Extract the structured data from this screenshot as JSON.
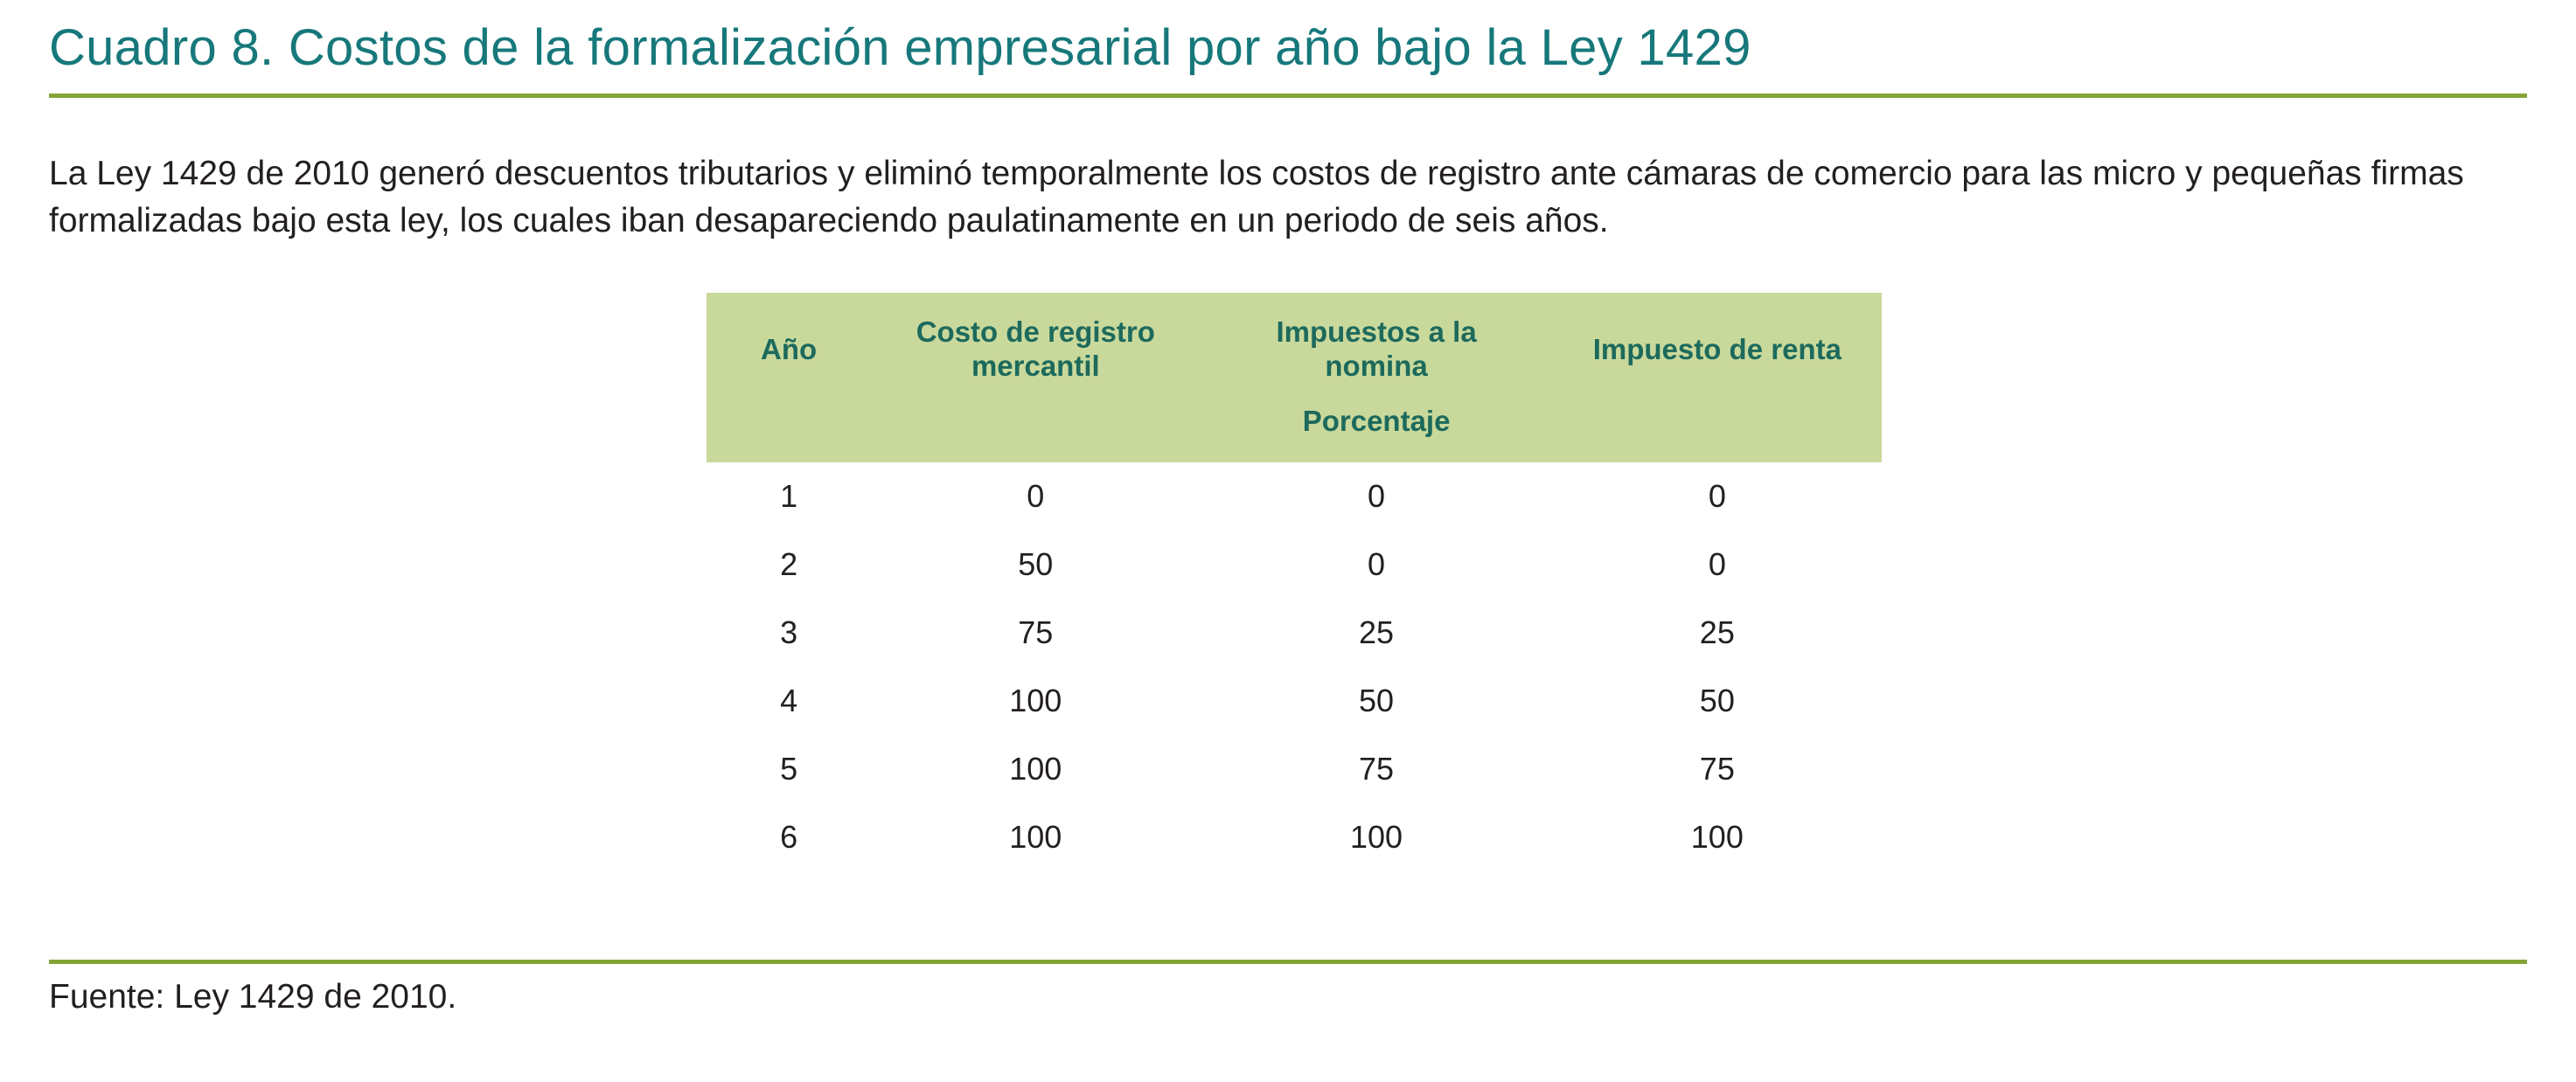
{
  "page": {
    "title": "Cuadro 8. Costos de la formalización empresarial por año bajo la Ley 1429",
    "description": "La Ley 1429 de 2010 generó descuentos tributarios y eliminó temporalmente los costos de registro ante cámaras de comercio para las micro y pequeñas firmas formalizadas bajo esta ley, los cuales iban desapareciendo paulatinamente en un periodo de seis años.",
    "source": "Fuente: Ley 1429 de 2010."
  },
  "colors": {
    "title": "#17787b",
    "rule": "#84a437",
    "header_bg": "#c9d99c",
    "header_text": "#1d6a5c",
    "body_text": "#231f20"
  },
  "chart_data": {
    "type": "table",
    "title": "Cuadro 8. Costos de la formalización empresarial por año bajo la Ley 1429",
    "columns": [
      "Año",
      "Costo de registro mercantil",
      "Impuestos a la nomina",
      "Impuesto de renta"
    ],
    "unit_subheader": "Porcentaje",
    "rows": [
      [
        1,
        0,
        0,
        0
      ],
      [
        2,
        50,
        0,
        0
      ],
      [
        3,
        75,
        25,
        25
      ],
      [
        4,
        100,
        50,
        50
      ],
      [
        5,
        100,
        75,
        75
      ],
      [
        6,
        100,
        100,
        100
      ]
    ]
  },
  "table": {
    "columns": [
      "Año",
      "Costo de registro mercantil",
      "Impuestos a la nomina",
      "Impuesto de renta"
    ],
    "subheader": "Porcentaje",
    "rows": [
      [
        "1",
        "0",
        "0",
        "0"
      ],
      [
        "2",
        "50",
        "0",
        "0"
      ],
      [
        "3",
        "75",
        "25",
        "25"
      ],
      [
        "4",
        "100",
        "50",
        "50"
      ],
      [
        "5",
        "100",
        "75",
        "75"
      ],
      [
        "6",
        "100",
        "100",
        "100"
      ]
    ]
  }
}
